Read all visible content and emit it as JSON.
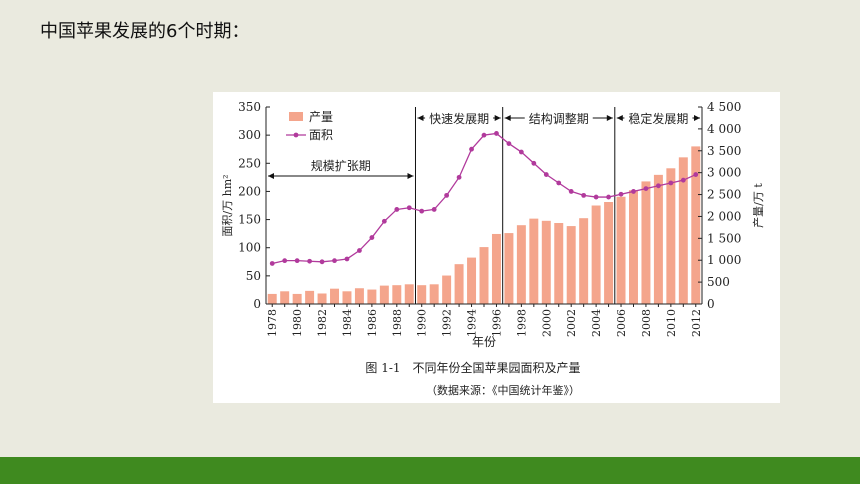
{
  "slide": {
    "title": "中国苹果发展的6个时期："
  },
  "chart_data": {
    "type": "bar",
    "x": [
      "1978",
      "1979",
      "1980",
      "1981",
      "1982",
      "1983",
      "1984",
      "1985",
      "1986",
      "1987",
      "1988",
      "1989",
      "1990",
      "1991",
      "1992",
      "1993",
      "1994",
      "1995",
      "1996",
      "1997",
      "1998",
      "1999",
      "2000",
      "2001",
      "2002",
      "2003",
      "2004",
      "2005",
      "2006",
      "2007",
      "2008",
      "2009",
      "2010",
      "2011",
      "2012"
    ],
    "x_tick_labels": [
      "1978",
      "1980",
      "1982",
      "1984",
      "1986",
      "1988",
      "1990",
      "1992",
      "1994",
      "1996",
      "1998",
      "2000",
      "2002",
      "2004",
      "2006",
      "2008",
      "2010",
      "2012"
    ],
    "series": [
      {
        "name": "产量",
        "kind": "bar",
        "axis": "right",
        "values": [
          230,
          290,
          230,
          300,
          240,
          350,
          290,
          360,
          330,
          420,
          430,
          450,
          430,
          450,
          650,
          910,
          1060,
          1300,
          1600,
          1620,
          1800,
          1950,
          1900,
          1850,
          1780,
          1960,
          2250,
          2330,
          2450,
          2600,
          2800,
          2950,
          3100,
          3350,
          3600
        ]
      },
      {
        "name": "面积",
        "kind": "line",
        "axis": "left",
        "values": [
          72,
          77,
          77,
          76,
          75,
          77,
          80,
          95,
          118,
          147,
          168,
          171,
          165,
          168,
          193,
          225,
          275,
          300,
          303,
          285,
          270,
          250,
          230,
          215,
          200,
          193,
          190,
          190,
          195,
          200,
          205,
          210,
          215,
          220,
          230
        ]
      }
    ],
    "ylabel": "面积/万 hm²",
    "y2label": "产量/万 t",
    "xlabel": "年份",
    "ylim": [
      0,
      350
    ],
    "y2lim": [
      0,
      4500
    ],
    "yticks": [
      "0",
      "50",
      "100",
      "150",
      "200",
      "250",
      "300",
      "350"
    ],
    "y2ticks": [
      "0",
      "500",
      "1 000",
      "1 500",
      "2 000",
      "2 500",
      "3 000",
      "3 500",
      "4 000",
      "4 500"
    ],
    "legend_position": "top-left",
    "periods": [
      {
        "label": "规模扩张期",
        "start": "1978",
        "end": "1989"
      },
      {
        "label": "快速发展期",
        "start": "1990",
        "end": "1996"
      },
      {
        "label": "结构调整期",
        "start": "1997",
        "end": "2005"
      },
      {
        "label": "稳定发展期",
        "start": "2006",
        "end": "2012"
      }
    ],
    "caption": "图 1-1　不同年份全国苹果园面积及产量",
    "source": "（数据来源：《中国统计年鉴》）",
    "colors": {
      "bar": "#f4a58c",
      "line": "#b13a9c",
      "axis": "#222222"
    }
  }
}
